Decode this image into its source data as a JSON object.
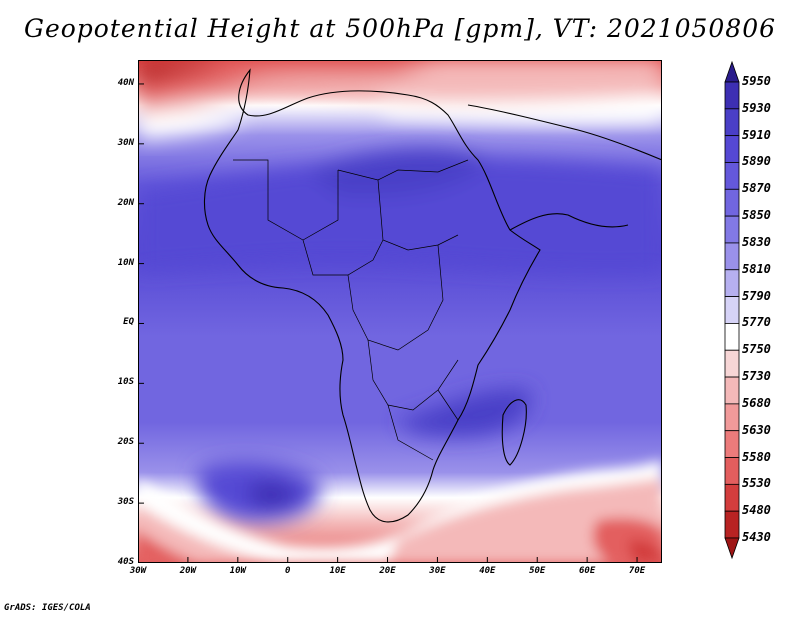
{
  "title": "Geopotential Height at 500hPa [gpm], VT: 2021050806",
  "footer": "GrADS: IGES/COLA",
  "axes": {
    "lat_labels": [
      "40N",
      "30N",
      "20N",
      "10N",
      "EQ",
      "10S",
      "20S",
      "30S",
      "40S"
    ],
    "lon_labels": [
      "30W",
      "20W",
      "10W",
      "0",
      "10E",
      "20E",
      "30E",
      "40E",
      "50E",
      "60E",
      "70E"
    ],
    "lat_range": [
      -40,
      44
    ],
    "lon_range": [
      -30,
      75
    ]
  },
  "colorbar": {
    "levels": [
      "5950",
      "5930",
      "5910",
      "5890",
      "5870",
      "5850",
      "5830",
      "5810",
      "5790",
      "5770",
      "5750",
      "5730",
      "5680",
      "5630",
      "5580",
      "5530",
      "5480",
      "5430"
    ],
    "colors": [
      "#2a1c8c",
      "#3d2fb3",
      "#4a3fc7",
      "#5548d4",
      "#6458db",
      "#7166e0",
      "#8279e5",
      "#9a91ea",
      "#b6b0f0",
      "#d6d3f7",
      "#ffffff",
      "#f7d6d6",
      "#f4b9b9",
      "#f19a9a",
      "#ec7b7b",
      "#e35e5e",
      "#d33d3d",
      "#b82323",
      "#9e1515"
    ]
  }
}
